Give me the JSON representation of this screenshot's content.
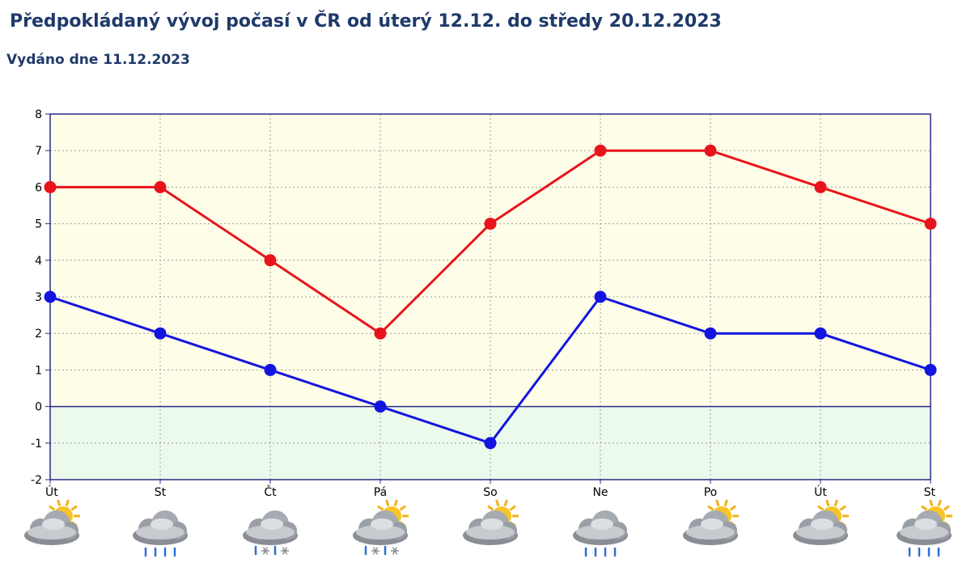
{
  "header": {
    "title": "Předpokládaný vývoj počasí v ČR od úterý 12.12. do středy 20.12.2023",
    "subtitle": "Vydáno dne 11.12.2023"
  },
  "chart_data": {
    "type": "line",
    "title": "Předpokládaný vývoj počasí v ČR od úterý 12.12. do středy 20.12.2023",
    "categories": [
      "Út",
      "St",
      "Čt",
      "Pá",
      "So",
      "Ne",
      "Po",
      "Út",
      "St"
    ],
    "series": [
      {
        "color": "#e8141c",
        "values": [
          6,
          6,
          4,
          2,
          5,
          7,
          7,
          6,
          5
        ]
      },
      {
        "color": "#1414e0",
        "values": [
          3,
          2,
          1,
          0,
          -1,
          3,
          2,
          2,
          1
        ]
      }
    ],
    "ylim": [
      -2,
      8
    ],
    "yticks": [
      8,
      7,
      6,
      5,
      4,
      3,
      2,
      1,
      0,
      -1,
      -2
    ],
    "xlabel": "",
    "ylabel": "",
    "grid": true,
    "colors": {
      "positive_background": "#fefee8",
      "negative_background": "#ecfaec",
      "axis": "#2a2a8a",
      "grid": "#9a9a9a"
    },
    "weather_icons": [
      "sun-cloud-icon",
      "cloud-rain-icon",
      "cloud-rain-snow-icon",
      "sun-cloud-rain-snow-icon",
      "sun-cloud-icon",
      "cloud-rain-icon",
      "sun-cloud-icon",
      "sun-cloud-icon",
      "sun-cloud-rain-icon"
    ]
  }
}
